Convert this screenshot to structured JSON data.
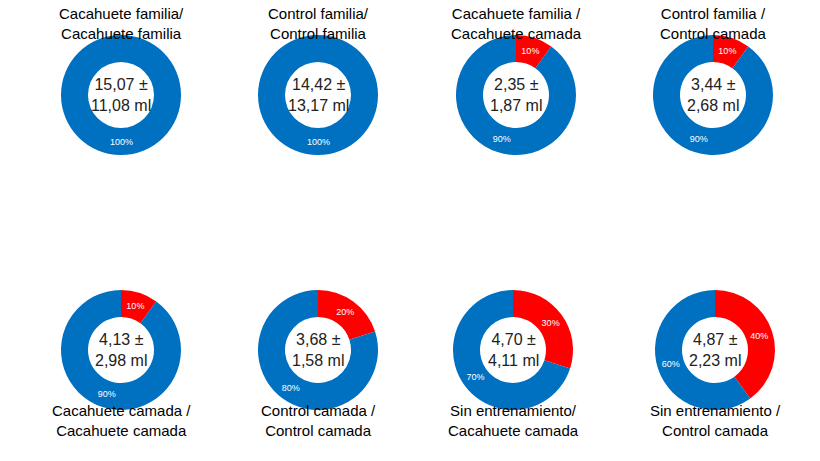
{
  "chart_data": [
    {
      "type": "pie",
      "title": "Cacahuete familia/\nCacahuete familia",
      "center_text": "15,07 ±\n11,08 ml",
      "values": [
        100
      ],
      "value_labels": [
        "100%"
      ],
      "colors": [
        "#0070c0"
      ],
      "data_labels": true
    },
    {
      "type": "pie",
      "title": "Control familia/\nControl familia",
      "center_text": "14,42 ±\n13,17 ml",
      "values": [
        100
      ],
      "value_labels": [
        "100%"
      ],
      "colors": [
        "#0070c0"
      ],
      "data_labels": true
    },
    {
      "type": "pie",
      "title": "Cacahuete familia /\nCacahuete camada",
      "center_text": "2,35 ±\n1,87 ml",
      "values": [
        10,
        90
      ],
      "value_labels": [
        "10%",
        "90%"
      ],
      "colors": [
        "#ff0000",
        "#0070c0"
      ],
      "data_labels": true
    },
    {
      "type": "pie",
      "title": "Control familia /\nControl camada",
      "center_text": "3,44 ±\n2,68 ml",
      "values": [
        10,
        90
      ],
      "value_labels": [
        "10%",
        "90%"
      ],
      "colors": [
        "#ff0000",
        "#0070c0"
      ],
      "data_labels": true
    },
    {
      "type": "pie",
      "title": "Cacahuete camada /\nCacahuete camada",
      "center_text": "4,13 ±\n2,98 ml",
      "values": [
        10,
        90
      ],
      "value_labels": [
        "10%",
        "90%"
      ],
      "colors": [
        "#ff0000",
        "#0070c0"
      ],
      "data_labels": true
    },
    {
      "type": "pie",
      "title": "Control camada /\nControl camada",
      "center_text": "3,68 ±\n1,58 ml",
      "values": [
        20,
        80
      ],
      "value_labels": [
        "20%",
        "80%"
      ],
      "colors": [
        "#ff0000",
        "#0070c0"
      ],
      "data_labels": true
    },
    {
      "type": "pie",
      "title": "Sin entrenamiento/\nCacahuete camada",
      "center_text": "4,70 ±\n4,11 ml",
      "values": [
        30,
        70
      ],
      "value_labels": [
        "30%",
        "70%"
      ],
      "colors": [
        "#ff0000",
        "#0070c0"
      ],
      "data_labels": true
    },
    {
      "type": "pie",
      "title": "Sin entrenamiento /\nControl camada",
      "center_text": "4,87 ±\n2,23 ml",
      "values": [
        40,
        60
      ],
      "value_labels": [
        "40%",
        "60%"
      ],
      "colors": [
        "#ff0000",
        "#0070c0"
      ],
      "data_labels": true
    }
  ]
}
